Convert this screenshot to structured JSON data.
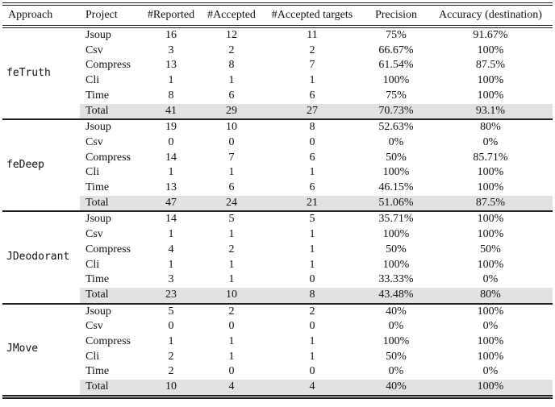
{
  "table": {
    "columns": [
      "Approach",
      "Project",
      "#Reported",
      "#Accepted",
      "#Accepted targets",
      "Precision",
      "Accuracy (destination)"
    ],
    "groups": [
      {
        "approach": "feTruth",
        "rows": [
          [
            "Jsoup",
            "16",
            "12",
            "11",
            "75%",
            "91.67%"
          ],
          [
            "Csv",
            "3",
            "2",
            "2",
            "66.67%",
            "100%"
          ],
          [
            "Compress",
            "13",
            "8",
            "7",
            "61.54%",
            "87.5%"
          ],
          [
            "Cli",
            "1",
            "1",
            "1",
            "100%",
            "100%"
          ],
          [
            "Time",
            "8",
            "6",
            "6",
            "75%",
            "100%"
          ],
          [
            "Total",
            "41",
            "29",
            "27",
            "70.73%",
            "93.1%"
          ]
        ]
      },
      {
        "approach": "feDeep",
        "rows": [
          [
            "Jsoup",
            "19",
            "10",
            "8",
            "52.63%",
            "80%"
          ],
          [
            "Csv",
            "0",
            "0",
            "0",
            "0%",
            "0%"
          ],
          [
            "Compress",
            "14",
            "7",
            "6",
            "50%",
            "85.71%"
          ],
          [
            "Cli",
            "1",
            "1",
            "1",
            "100%",
            "100%"
          ],
          [
            "Time",
            "13",
            "6",
            "6",
            "46.15%",
            "100%"
          ],
          [
            "Total",
            "47",
            "24",
            "21",
            "51.06%",
            "87.5%"
          ]
        ]
      },
      {
        "approach": "JDeodorant",
        "rows": [
          [
            "Jsoup",
            "14",
            "5",
            "5",
            "35.71%",
            "100%"
          ],
          [
            "Csv",
            "1",
            "1",
            "1",
            "100%",
            "100%"
          ],
          [
            "Compress",
            "4",
            "2",
            "1",
            "50%",
            "50%"
          ],
          [
            "Cli",
            "1",
            "1",
            "1",
            "100%",
            "100%"
          ],
          [
            "Time",
            "3",
            "1",
            "0",
            "33.33%",
            "0%"
          ],
          [
            "Total",
            "23",
            "10",
            "8",
            "43.48%",
            "80%"
          ]
        ]
      },
      {
        "approach": "JMove",
        "rows": [
          [
            "Jsoup",
            "5",
            "2",
            "2",
            "40%",
            "100%"
          ],
          [
            "Csv",
            "0",
            "0",
            "0",
            "0%",
            "0%"
          ],
          [
            "Compress",
            "1",
            "1",
            "1",
            "100%",
            "100%"
          ],
          [
            "Cli",
            "2",
            "1",
            "1",
            "50%",
            "100%"
          ],
          [
            "Time",
            "2",
            "0",
            "0",
            "0%",
            "0%"
          ],
          [
            "Total",
            "10",
            "4",
            "4",
            "40%",
            "100%"
          ]
        ]
      }
    ],
    "total_row_label": "Total"
  },
  "colors": {
    "rule": "#1f1f1f",
    "text": "#111111",
    "total_row_bg": "#e2e2e2",
    "page_bg": "#ffffff"
  }
}
